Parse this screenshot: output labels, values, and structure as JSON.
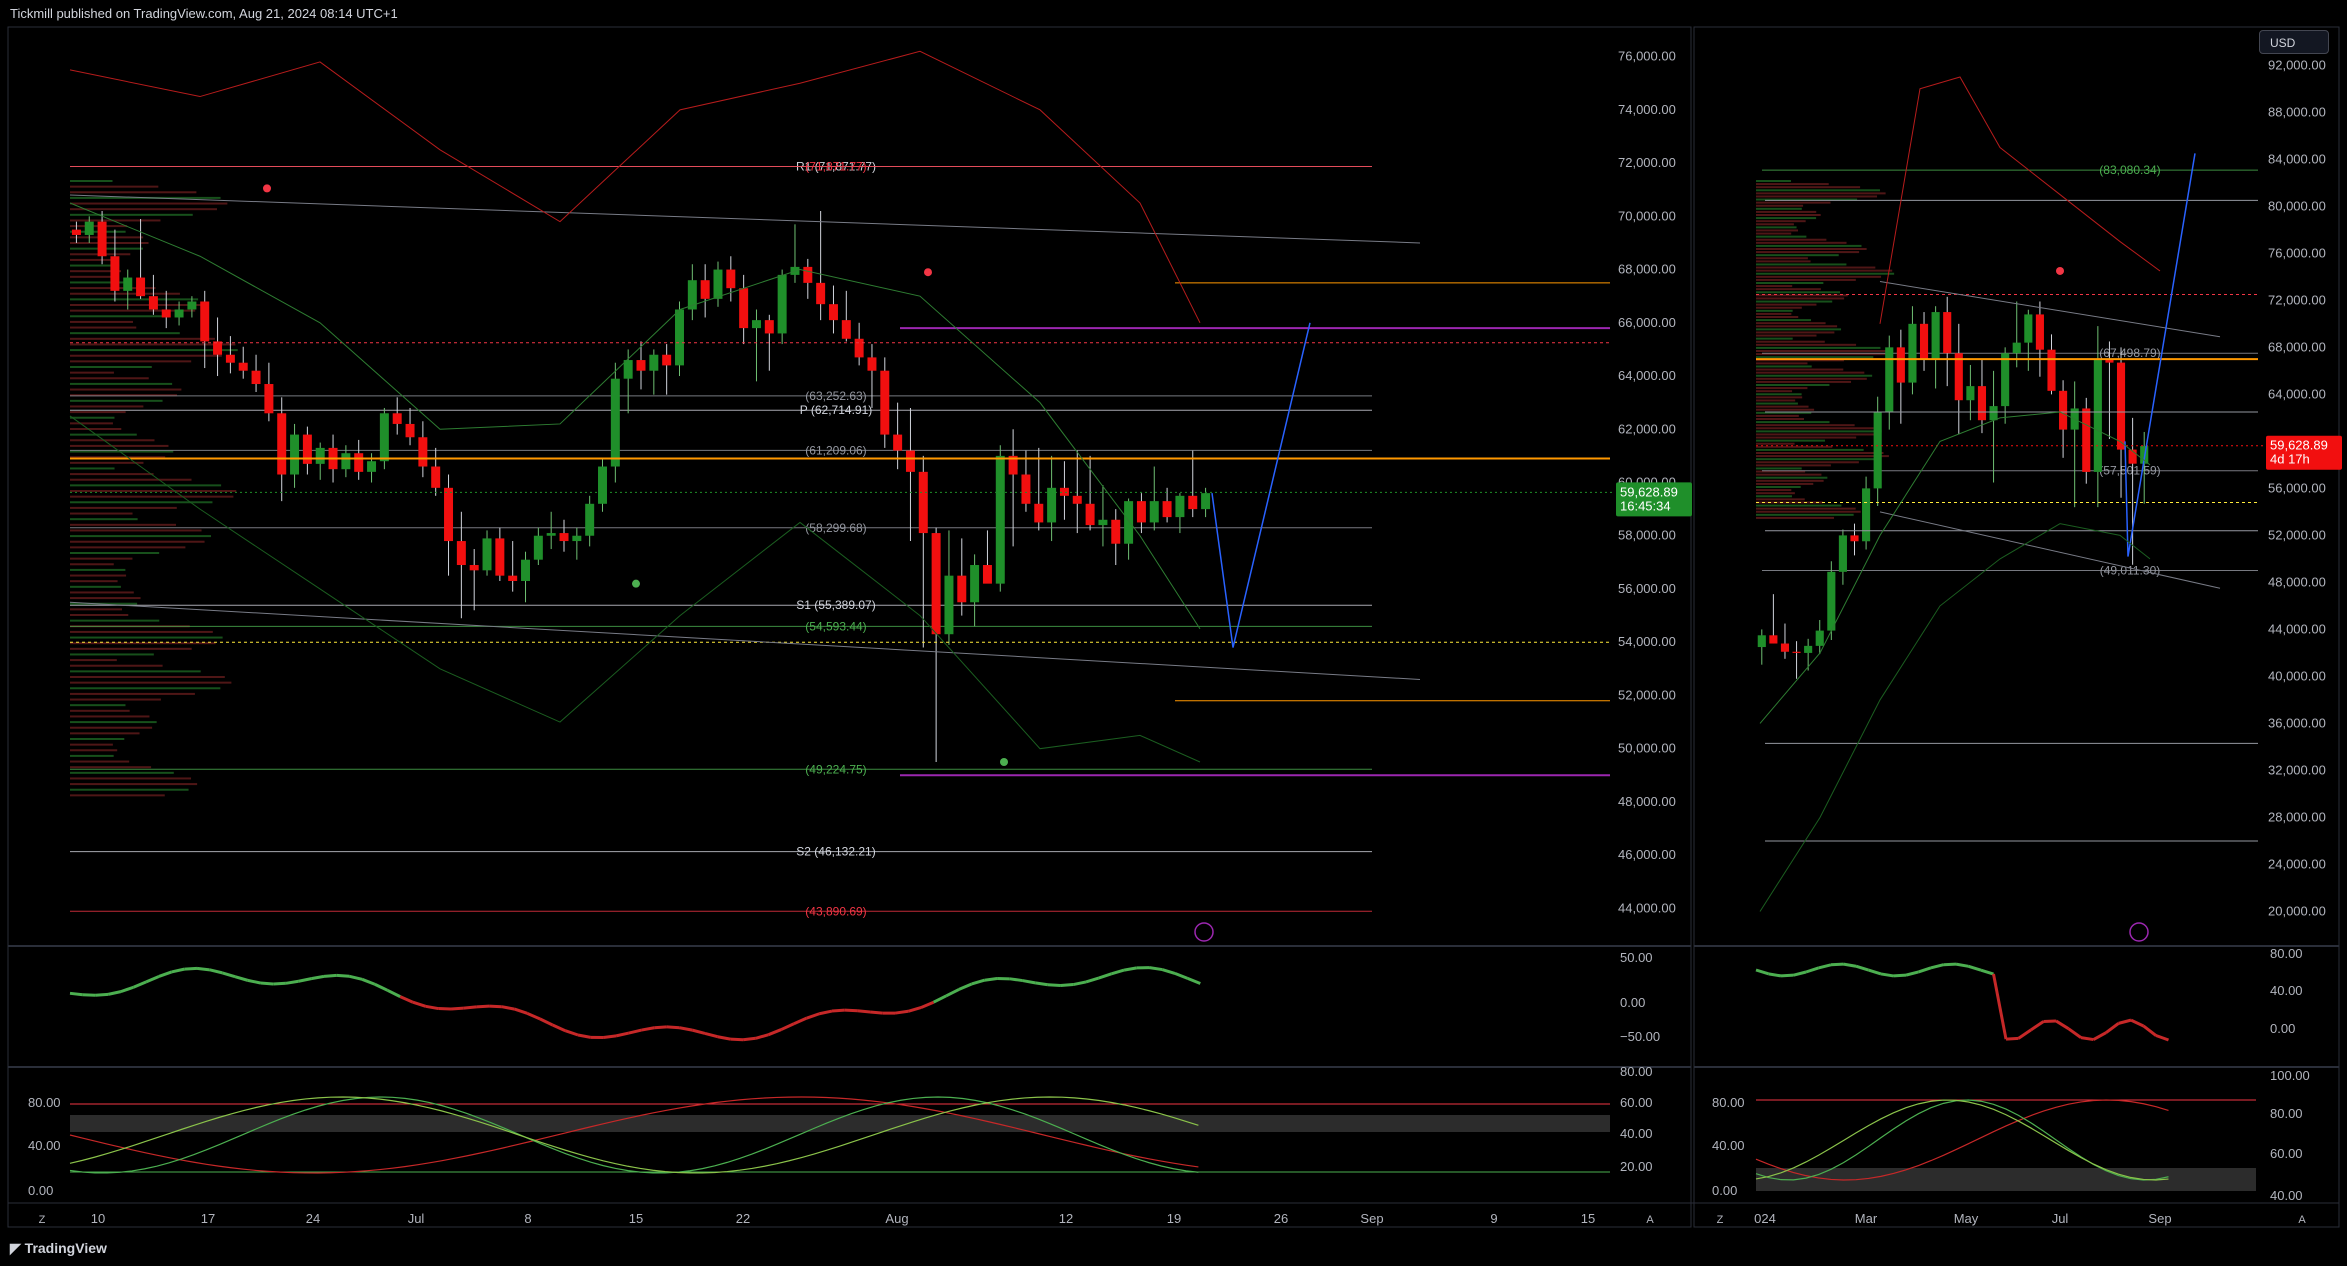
{
  "header": {
    "publisher": "Tickmill published on TradingView.com, Aug 21, 2024 08:14 UTC+1"
  },
  "footer": {
    "brand": "TradingView"
  },
  "currency_button": "USD",
  "chart_data": [
    {
      "type": "candlestick",
      "id": "left-price",
      "ylim": [
        43000,
        77000
      ],
      "y_ticks": [
        "76,000.00",
        "74,000.00",
        "72,000.00",
        "70,000.00",
        "68,000.00",
        "66,000.00",
        "64,000.00",
        "62,000.00",
        "60,000.00",
        "58,000.00",
        "56,000.00",
        "54,000.00",
        "52,000.00",
        "50,000.00",
        "48,000.00",
        "46,000.00",
        "44,000.00"
      ],
      "x_ticks": [
        "10",
        "17",
        "24",
        "Jul",
        "8",
        "15",
        "22",
        "Aug",
        "12",
        "19",
        "26",
        "Sep",
        "9",
        "15"
      ],
      "levels": [
        {
          "label": "R1 (71,871.77)",
          "value": 71871.77
        },
        {
          "label": "(71,871.77)",
          "value": 71871.77
        },
        {
          "label": "(63,252.63)",
          "value": 63252.63
        },
        {
          "label": "P (62,714.91)",
          "value": 62714.91
        },
        {
          "label": "(61,209.06)",
          "value": 61209.06
        },
        {
          "label": "(58,299.68)",
          "value": 58299.68
        },
        {
          "label": "S1 (55,389.07)",
          "value": 55389.07
        },
        {
          "label": "(54,593.44)",
          "value": 54593.44
        },
        {
          "label": "(49,224.75)",
          "value": 49224.75
        },
        {
          "label": "S2 (46,132.21)",
          "value": 46132.21
        },
        {
          "label": "(43,890.69)",
          "value": 43890.69
        }
      ],
      "last_price": "59,628.89",
      "countdown": "16:45:34",
      "candles": [
        [
          69500,
          69800,
          69000,
          69300
        ],
        [
          69300,
          70000,
          69000,
          69800
        ],
        [
          69800,
          70200,
          68200,
          68500
        ],
        [
          68500,
          69500,
          66800,
          67200
        ],
        [
          67200,
          68000,
          66500,
          67700
        ],
        [
          67700,
          69900,
          66900,
          67000
        ],
        [
          67000,
          67800,
          66300,
          66500
        ],
        [
          66500,
          67200,
          65800,
          66200
        ],
        [
          66200,
          66800,
          65900,
          66500
        ],
        [
          66500,
          67000,
          66200,
          66800
        ],
        [
          66800,
          67200,
          64300,
          65300
        ],
        [
          65300,
          66200,
          64000,
          64800
        ],
        [
          64800,
          65500,
          64100,
          64500
        ],
        [
          64500,
          65100,
          63900,
          64200
        ],
        [
          64200,
          64800,
          63400,
          63700
        ],
        [
          63700,
          64500,
          62300,
          62600
        ],
        [
          62600,
          63200,
          59300,
          60300
        ],
        [
          60300,
          62200,
          59800,
          61800
        ],
        [
          61800,
          62100,
          60300,
          60700
        ],
        [
          60700,
          61500,
          60100,
          61300
        ],
        [
          61300,
          61800,
          60000,
          60500
        ],
        [
          60500,
          61400,
          60200,
          61100
        ],
        [
          61100,
          61600,
          60100,
          60400
        ],
        [
          60400,
          61100,
          60000,
          60800
        ],
        [
          60800,
          62800,
          60500,
          62600
        ],
        [
          62600,
          63200,
          61800,
          62200
        ],
        [
          62200,
          62800,
          61400,
          61700
        ],
        [
          61700,
          62300,
          60200,
          60600
        ],
        [
          60600,
          61300,
          59500,
          59800
        ],
        [
          59800,
          60300,
          56500,
          57800
        ],
        [
          57800,
          58900,
          54900,
          56900
        ],
        [
          56900,
          57500,
          55200,
          56700
        ],
        [
          56700,
          58200,
          56500,
          57900
        ],
        [
          57900,
          58300,
          56300,
          56500
        ],
        [
          56500,
          57800,
          55900,
          56300
        ],
        [
          56300,
          57400,
          55500,
          57100
        ],
        [
          57100,
          58300,
          56900,
          58000
        ],
        [
          58000,
          58900,
          57500,
          58100
        ],
        [
          58100,
          58600,
          57400,
          57800
        ],
        [
          57800,
          58300,
          57100,
          58000
        ],
        [
          58000,
          59500,
          57600,
          59200
        ],
        [
          59200,
          60900,
          58900,
          60600
        ],
        [
          60600,
          64500,
          60000,
          63900
        ],
        [
          63900,
          65000,
          62600,
          64600
        ],
        [
          64600,
          65300,
          63500,
          64200
        ],
        [
          64200,
          65000,
          63300,
          64800
        ],
        [
          64800,
          65200,
          63300,
          64400
        ],
        [
          64400,
          66800,
          64000,
          66500
        ],
        [
          66500,
          68200,
          66100,
          67600
        ],
        [
          67600,
          68200,
          66200,
          66900
        ],
        [
          66900,
          68300,
          66600,
          68000
        ],
        [
          68000,
          68500,
          66800,
          67300
        ],
        [
          67300,
          67800,
          65200,
          65800
        ],
        [
          65800,
          66500,
          63800,
          66100
        ],
        [
          66100,
          66300,
          64200,
          65600
        ],
        [
          65600,
          68000,
          65200,
          67800
        ],
        [
          67800,
          69700,
          67500,
          68100
        ],
        [
          68100,
          68400,
          66900,
          67500
        ],
        [
          67500,
          70200,
          66100,
          66700
        ],
        [
          66700,
          67400,
          65600,
          66100
        ],
        [
          66100,
          67200,
          65300,
          65400
        ],
        [
          65400,
          66000,
          64400,
          64700
        ],
        [
          64700,
          65200,
          62800,
          64200
        ],
        [
          64200,
          64700,
          61300,
          61800
        ],
        [
          61800,
          63000,
          60500,
          61200
        ],
        [
          61200,
          62800,
          57800,
          60400
        ],
        [
          60400,
          61000,
          53800,
          58100
        ],
        [
          58100,
          58300,
          49500,
          54300
        ],
        [
          54300,
          58200,
          53900,
          56500
        ],
        [
          56500,
          57900,
          55000,
          55500
        ],
        [
          55500,
          57300,
          54600,
          56900
        ],
        [
          56900,
          58200,
          56300,
          56200
        ],
        [
          56200,
          61400,
          55900,
          61000
        ],
        [
          61000,
          62000,
          57600,
          60300
        ],
        [
          60300,
          61200,
          58900,
          59200
        ],
        [
          59200,
          61300,
          58200,
          58500
        ],
        [
          58500,
          61000,
          57800,
          59800
        ],
        [
          59800,
          60800,
          58600,
          59500
        ],
        [
          59500,
          61200,
          58100,
          59200
        ],
        [
          59200,
          61000,
          58200,
          58400
        ],
        [
          58400,
          59900,
          57600,
          58600
        ],
        [
          58600,
          59000,
          56900,
          57700
        ],
        [
          57700,
          59400,
          57100,
          59300
        ],
        [
          59300,
          59600,
          58100,
          58500
        ],
        [
          58500,
          60600,
          58200,
          59300
        ],
        [
          59300,
          59800,
          58500,
          58700
        ],
        [
          58700,
          59600,
          58100,
          59500
        ],
        [
          59500,
          61200,
          58700,
          59000
        ],
        [
          59000,
          59800,
          58700,
          59600
        ]
      ]
    },
    {
      "type": "line",
      "id": "left-oscillator",
      "y_ticks": [
        "50.00",
        "0.00",
        "−50.00"
      ]
    },
    {
      "type": "line",
      "id": "left-stochastic",
      "y_ticks_left": [
        "80.00",
        "40.00",
        "0.00"
      ],
      "y_ticks_right": [
        "80.00",
        "60.00",
        "40.00",
        "20.00"
      ]
    },
    {
      "type": "candlestick",
      "id": "right-price",
      "ylim": [
        18000,
        95000
      ],
      "y_ticks": [
        "92,000.00",
        "88,000.00",
        "84,000.00",
        "80,000.00",
        "76,000.00",
        "72,000.00",
        "68,000.00",
        "64,000.00",
        "60,000.00",
        "56,000.00",
        "52,000.00",
        "48,000.00",
        "44,000.00",
        "40,000.00",
        "36,000.00",
        "32,000.00",
        "28,000.00",
        "24,000.00",
        "20,000.00"
      ],
      "x_ticks": [
        "024",
        "Mar",
        "May",
        "Jul",
        "Sep"
      ],
      "levels": [
        {
          "label": "(83,080.34)",
          "value": 83080.34
        },
        {
          "label": "(67,498.79)",
          "value": 67498.79
        },
        {
          "label": "(57,501.59)",
          "value": 57501.59
        },
        {
          "label": "(49,011.30)",
          "value": 49011.3
        }
      ],
      "last_price": "59,628.89",
      "countdown": "4d 17h",
      "candles": [
        [
          42500,
          44000,
          41000,
          43500
        ],
        [
          43500,
          47000,
          42800,
          42800
        ],
        [
          42800,
          44500,
          41500,
          42100
        ],
        [
          42100,
          43000,
          39800,
          42000
        ],
        [
          42000,
          43200,
          40500,
          42600
        ],
        [
          42600,
          44800,
          41900,
          43900
        ],
        [
          43900,
          49800,
          43100,
          48900
        ],
        [
          48900,
          52500,
          47800,
          52000
        ],
        [
          52000,
          53000,
          50300,
          51500
        ],
        [
          51500,
          57000,
          50800,
          56000
        ],
        [
          56000,
          63800,
          54500,
          62500
        ],
        [
          62500,
          69000,
          61000,
          68000
        ],
        [
          68000,
          69500,
          61500,
          65000
        ],
        [
          65000,
          71500,
          64000,
          70000
        ],
        [
          70000,
          71000,
          66000,
          67000
        ],
        [
          67000,
          71500,
          64500,
          71000
        ],
        [
          71000,
          72300,
          64700,
          67500
        ],
        [
          67500,
          70000,
          60600,
          63500
        ],
        [
          63500,
          66500,
          61800,
          64700
        ],
        [
          64700,
          67000,
          60700,
          61800
        ],
        [
          61800,
          66000,
          56500,
          63000
        ],
        [
          63000,
          68000,
          61500,
          67500
        ],
        [
          67500,
          71900,
          66300,
          68400
        ],
        [
          68400,
          71200,
          66000,
          70800
        ],
        [
          70800,
          71900,
          65500,
          67800
        ],
        [
          67800,
          69100,
          64000,
          64300
        ],
        [
          64300,
          65200,
          58600,
          61000
        ],
        [
          61000,
          65100,
          54400,
          62800
        ],
        [
          62800,
          63700,
          56400,
          57400
        ],
        [
          57400,
          69800,
          54400,
          67000
        ],
        [
          67000,
          68500,
          60200,
          66700
        ],
        [
          66700,
          68000,
          55200,
          59300
        ],
        [
          59300,
          62000,
          49500,
          58100
        ],
        [
          58100,
          60800,
          54700,
          59600
        ]
      ]
    },
    {
      "type": "line",
      "id": "right-oscillator",
      "y_ticks": [
        "80.00",
        "40.00",
        "0.00"
      ]
    },
    {
      "type": "line",
      "id": "right-stochastic",
      "y_ticks_left": [
        "80.00",
        "40.00",
        "0.00"
      ],
      "y_ticks_right": [
        "100.00",
        "80.00",
        "60.00",
        "40.00"
      ]
    }
  ]
}
